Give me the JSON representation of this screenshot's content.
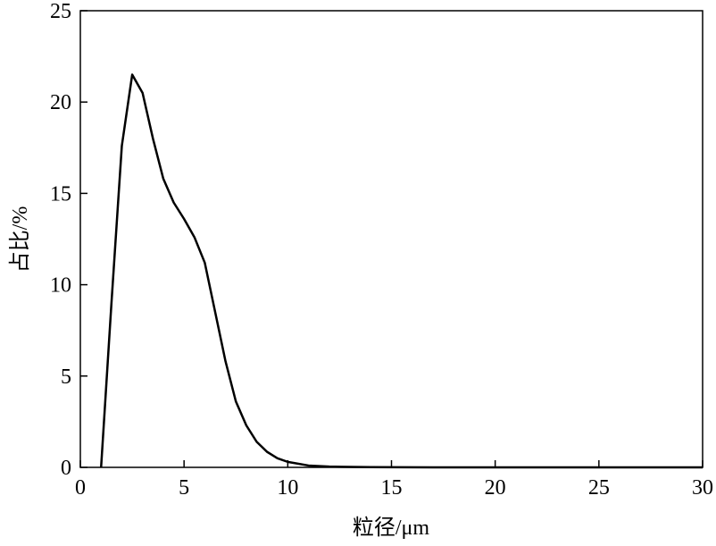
{
  "chart_data": {
    "type": "line",
    "x_label": "粒径/μm",
    "y_label": "占比/%",
    "x": [
      1.0,
      1.5,
      2.0,
      2.5,
      3.0,
      3.5,
      4.0,
      4.5,
      5.0,
      5.5,
      6.0,
      6.5,
      7.0,
      7.5,
      8.0,
      8.5,
      9.0,
      9.5,
      10,
      11,
      12,
      14,
      17,
      20,
      25,
      30
    ],
    "series": [
      {
        "color": "#000000",
        "values": [
          0,
          9,
          17.6,
          21.5,
          20.5,
          18,
          15.8,
          14.5,
          13.6,
          12.6,
          11.2,
          8.5,
          5.8,
          3.6,
          2.3,
          1.4,
          0.85,
          0.5,
          0.3,
          0.1,
          0.04,
          0.01,
          0,
          0,
          0,
          0
        ]
      }
    ],
    "xlim": [
      0,
      30
    ],
    "xticks": [
      0,
      5,
      10,
      15,
      20,
      25,
      30
    ],
    "ylim": [
      0,
      25
    ],
    "yticks": [
      0,
      5,
      10,
      15,
      20,
      25
    ]
  }
}
